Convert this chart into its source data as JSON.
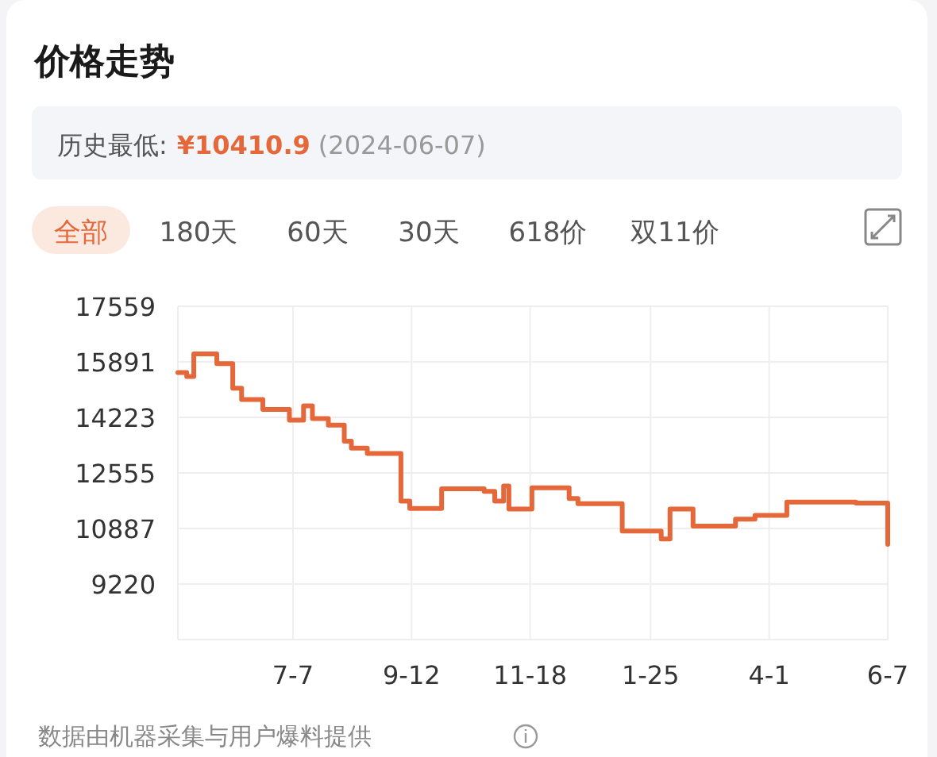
{
  "chart_data": {
    "type": "step",
    "title": "价格走势",
    "annotations": [
      "历史最低:",
      "¥10410.9",
      "(2024-06-07)",
      "全部",
      "180天",
      "60天",
      "30天",
      "618价",
      "双11价",
      "数据由机器采集与用户爆料提供"
    ],
    "x": [
      "2023-05-03",
      "2023-05-08",
      "2023-05-12",
      "2023-05-25",
      "2023-06-03",
      "2023-06-08",
      "2023-06-20",
      "2023-07-05",
      "2023-07-13",
      "2023-07-18",
      "2023-07-27",
      "2023-08-05",
      "2023-08-09",
      "2023-08-18",
      "2023-09-06",
      "2023-09-11",
      "2023-09-29",
      "2023-10-23",
      "2023-10-29",
      "2023-11-03",
      "2023-11-06",
      "2023-11-19",
      "2023-12-10",
      "2023-12-15",
      "2024-01-09",
      "2024-01-31",
      "2024-02-05",
      "2024-02-18",
      "2024-03-13",
      "2024-03-24",
      "2024-04-11",
      "2024-05-20",
      "2024-06-07"
    ],
    "series": [
      {
        "color": "#e4683a",
        "values": [
          15570,
          15450,
          16130,
          15840,
          15100,
          14760,
          14460,
          14140,
          14570,
          14190,
          13990,
          13510,
          13300,
          13140,
          11710,
          11490,
          12080,
          12000,
          11710,
          12160,
          11470,
          12110,
          11790,
          11630,
          10810,
          10570,
          11470,
          10960,
          11170,
          11280,
          11680,
          11650,
          10410.9
        ]
      }
    ],
    "xlim": [
      "2023-05-03",
      "2024-06-07"
    ],
    "xticks": [
      {
        "value": "2023-07-07",
        "label": "7-7"
      },
      {
        "value": "2023-09-12",
        "label": "9-12"
      },
      {
        "value": "2023-11-18",
        "label": "11-18"
      },
      {
        "value": "2024-01-25",
        "label": "1-25"
      },
      {
        "value": "2024-04-01",
        "label": "4-1"
      },
      {
        "value": "2024-06-07",
        "label": "6-7"
      }
    ],
    "ylim": [
      7552,
      17559
    ],
    "yticks": [
      9220,
      10887,
      12555,
      14223,
      15891,
      17559
    ],
    "grid": true
  }
}
